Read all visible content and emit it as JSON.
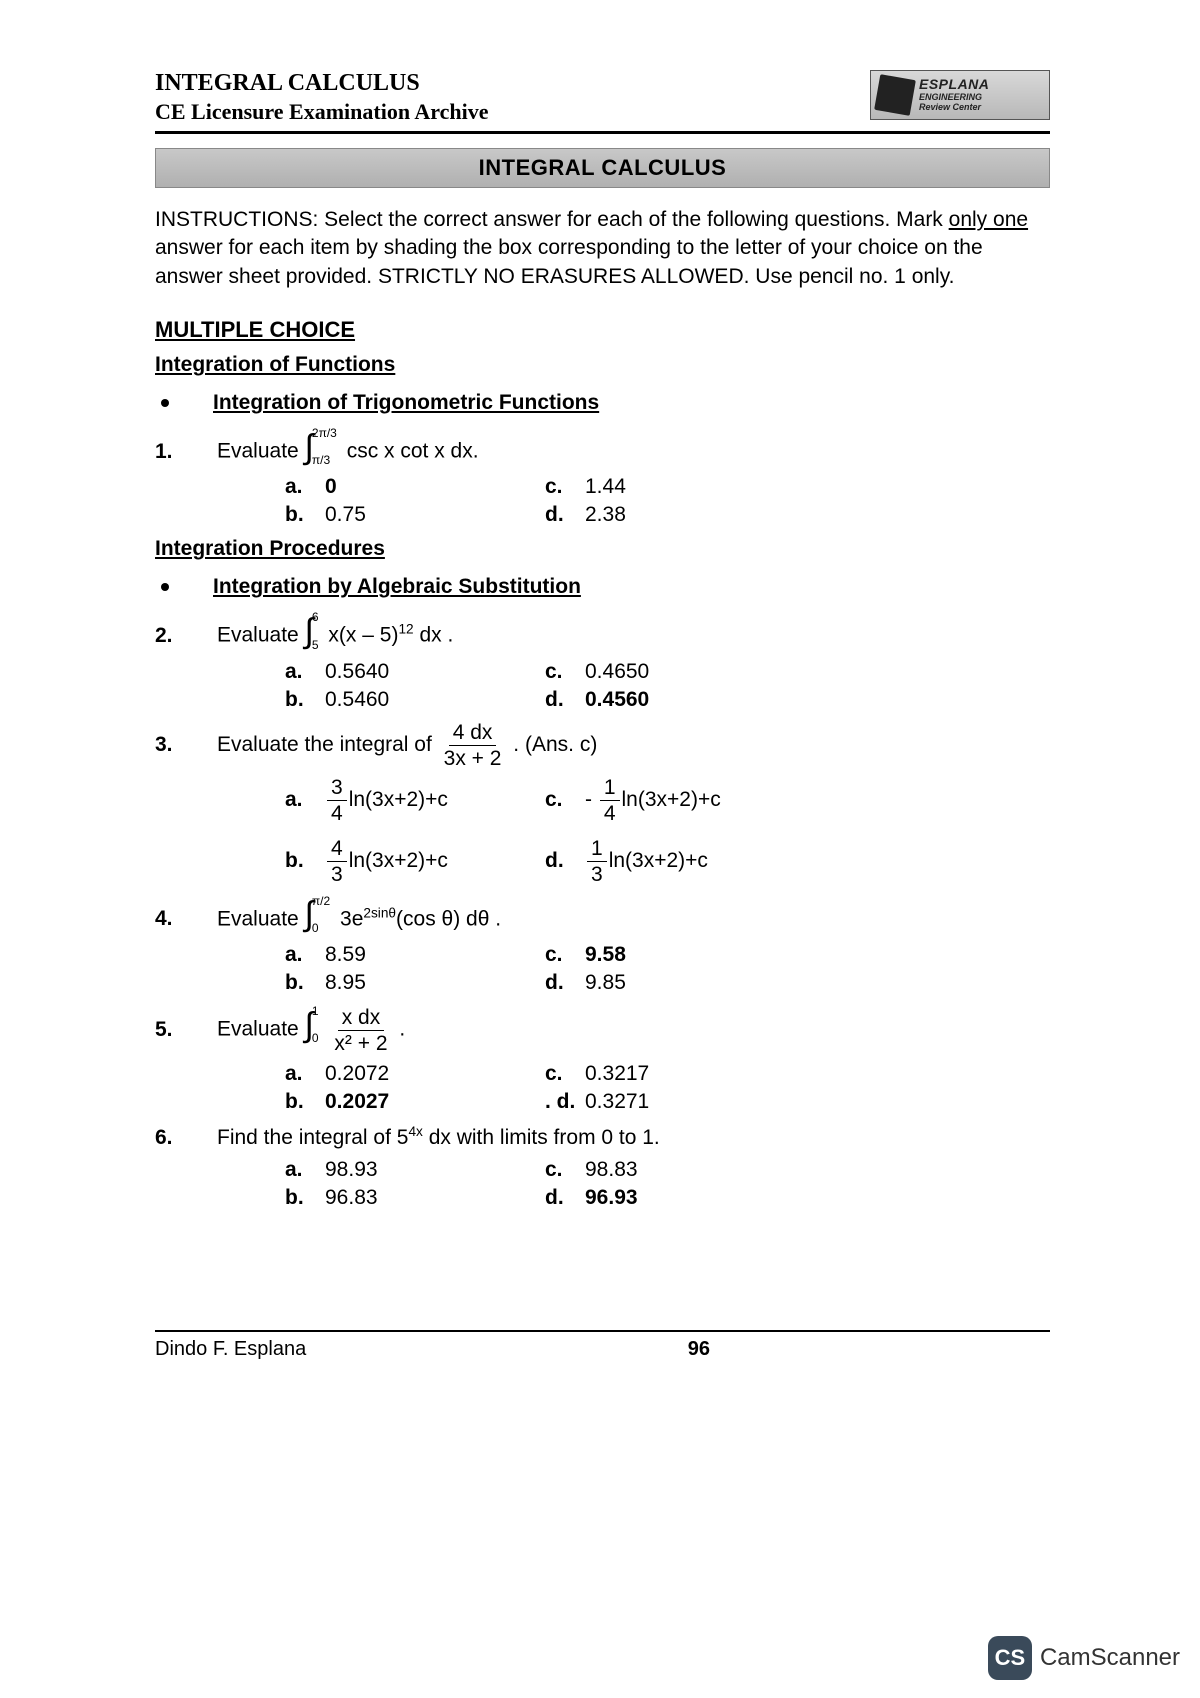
{
  "header": {
    "title": "INTEGRAL CALCULUS",
    "subtitle": "CE Licensure Examination Archive",
    "logo": {
      "brand": "ESPLANA",
      "line2": "ENGINEERING",
      "line3": "Review Center"
    }
  },
  "banner": "INTEGRAL CALCULUS",
  "instructions_prefix": "INSTRUCTIONS: Select the correct answer for each of the following questions. Mark ",
  "instructions_only": "only one",
  "instructions_mid": " answer for each item by shading the box corresponding to the letter of your choice on the answer sheet provided. STRICTLY NO ERASURES ALLOWED. Use pencil no. 1 only.",
  "sections": {
    "multiple_choice": "MULTIPLE CHOICE",
    "integration_of_functions": "Integration of Functions",
    "integration_trig": "Integration of Trigonometric Functions",
    "integration_procedures": "Integration Procedures",
    "integration_alg_sub": "Integration by Algebraic Substitution"
  },
  "q1": {
    "num": "1.",
    "prompt_prefix": "Evaluate ",
    "lower": "π/3",
    "upper": "2π/3",
    "integrand": "csc x cot x dx.",
    "a": "0",
    "b": "0.75",
    "c": "1.44",
    "d": "2.38"
  },
  "q2": {
    "num": "2.",
    "prompt_prefix": "Evaluate ",
    "lower": "5",
    "upper": "6",
    "integrand_pre": "x(x – 5)",
    "integrand_exp": "12",
    "integrand_post": " dx .",
    "a": "0.5640",
    "b": "0.5460",
    "c": "0.4650",
    "d": "0.4560"
  },
  "q3": {
    "num": "3.",
    "prompt_prefix": "Evaluate the integral of ",
    "frac_num": "4 dx",
    "frac_den": "3x + 2",
    "prompt_suffix": ". (Ans. c)",
    "a_frac_num": "3",
    "a_frac_den": "4",
    "a_rest": "ln(3x+2)+c",
    "b_frac_num": "4",
    "b_frac_den": "3",
    "b_rest": "ln(3x+2)+c",
    "c_frac_num": "1",
    "c_frac_den": "4",
    "c_rest": "ln(3x+2)+c",
    "d_frac_num": "1",
    "d_frac_den": "3",
    "d_rest": "ln(3x+2)+c"
  },
  "q4": {
    "num": "4.",
    "prompt_prefix": "Evaluate ",
    "lower": "0",
    "upper": "π/2",
    "integrand_pre": "3e",
    "integrand_exp": "2sinθ",
    "integrand_post": "(cos θ) dθ .",
    "a": "8.59",
    "b": "8.95",
    "c": "9.58",
    "d": "9.85"
  },
  "q5": {
    "num": "5.",
    "prompt_prefix": "Evaluate ",
    "lower": "0",
    "upper": "1",
    "frac_num": "x dx",
    "frac_den": "x² + 2",
    "suffix": ".",
    "a": "0.2072",
    "b": "0.2027",
    "c": "0.3217",
    "d": "0.3271"
  },
  "q6": {
    "num": "6.",
    "prompt_pre": "Find the integral of 5",
    "prompt_exp": "4x",
    "prompt_post": " dx with limits from 0 to 1.",
    "a": "98.93",
    "b": "96.83",
    "c": "98.83",
    "d": "96.93"
  },
  "footer": {
    "author": "Dindo F. Esplana",
    "page": "96"
  },
  "watermark": {
    "badge": "CS",
    "text": "CamScanner"
  }
}
